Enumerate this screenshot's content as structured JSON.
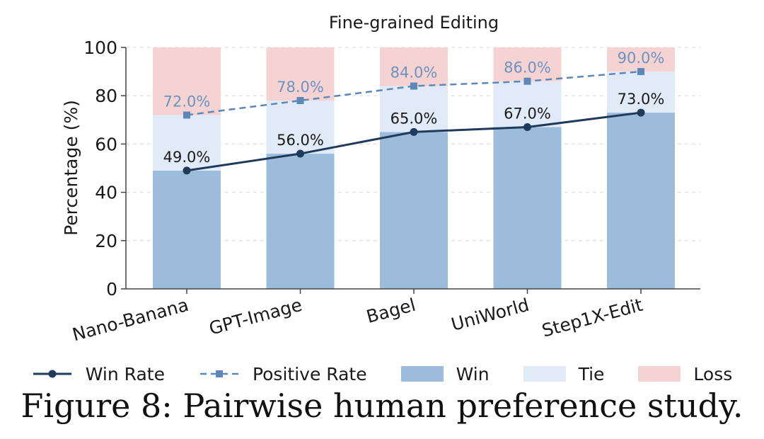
{
  "chart_data": {
    "type": "bar",
    "title": "Fine-grained Editing",
    "xlabel": "",
    "ylabel": "Percentage (%)",
    "ylim": [
      0,
      100
    ],
    "yticks": [
      0,
      20,
      40,
      60,
      80,
      100
    ],
    "grid": "horizontal dashed",
    "stacked": true,
    "categories": [
      "Nano-Banana",
      "GPT-Image",
      "Bagel",
      "UniWorld",
      "Step1X-Edit"
    ],
    "bar_series": [
      {
        "name": "Win",
        "values": [
          49,
          56,
          65,
          67,
          73
        ],
        "color": "#9dbbdb"
      },
      {
        "name": "Tie",
        "values": [
          23,
          22,
          19,
          19,
          17
        ],
        "color": "#e1ebf8"
      },
      {
        "name": "Loss",
        "values": [
          28,
          22,
          16,
          14,
          10
        ],
        "color": "#f6d3d3"
      }
    ],
    "line_series": [
      {
        "name": "Win Rate",
        "values": [
          49.0,
          56.0,
          65.0,
          67.0,
          73.0
        ],
        "labels": [
          "49.0%",
          "56.0%",
          "65.0%",
          "67.0%",
          "73.0%"
        ],
        "color": "#1f3a5a",
        "style": "solid",
        "marker": "circle"
      },
      {
        "name": "Positive Rate",
        "values": [
          72.0,
          78.0,
          84.0,
          86.0,
          90.0
        ],
        "labels": [
          "72.0%",
          "78.0%",
          "84.0%",
          "86.0%",
          "90.0%"
        ],
        "color": "#5b88b8",
        "style": "dashed",
        "marker": "square"
      }
    ],
    "legend": [
      "Win Rate",
      "Positive Rate",
      "Win",
      "Tie",
      "Loss"
    ],
    "legend_placement": "bottom"
  },
  "caption": "Figure 8: Pairwise human preference study."
}
